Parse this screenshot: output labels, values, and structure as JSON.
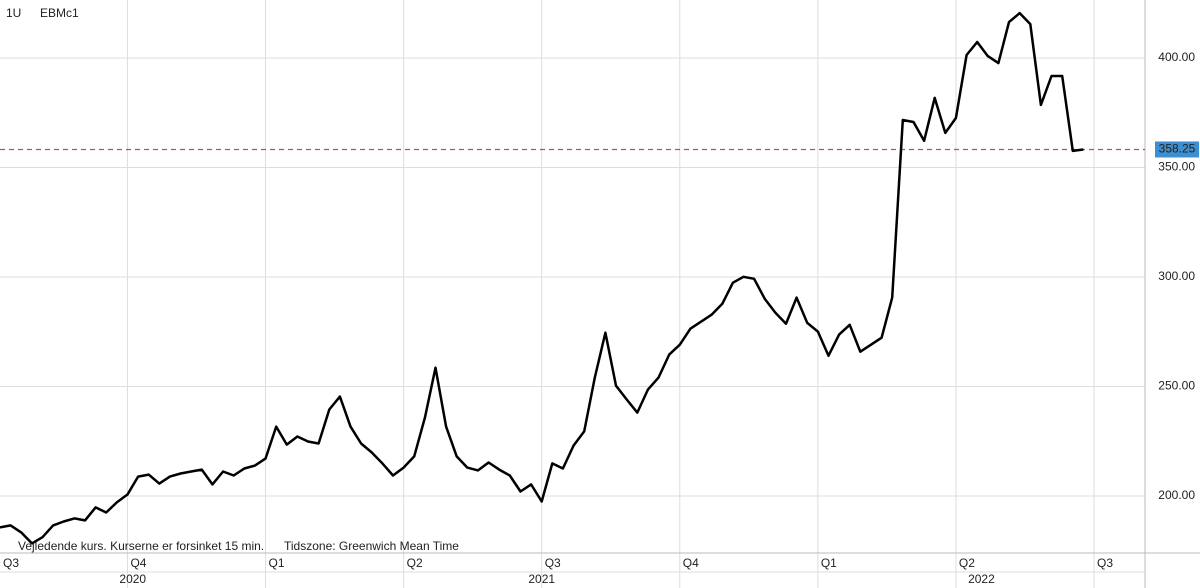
{
  "chart_data": {
    "type": "line",
    "header": [
      "1U",
      "EBMc1"
    ],
    "footnotes": [
      "Vejledende kurs. Kurserne er forsinket 15 min.",
      "Tidszone: Greenwich Mean Time"
    ],
    "x": [
      1,
      2,
      3,
      4,
      5,
      6,
      7,
      8,
      9,
      10,
      11,
      12,
      13,
      14,
      15,
      16,
      17,
      18,
      19,
      20,
      21,
      22,
      23,
      24,
      25,
      26,
      27,
      28,
      29,
      30,
      31,
      32,
      33,
      34,
      35,
      36,
      37,
      38,
      39,
      40,
      41,
      42,
      43,
      44,
      45,
      46,
      47,
      48,
      49,
      50,
      51,
      52,
      53,
      54,
      55,
      56,
      57,
      58,
      59,
      60,
      61,
      62,
      63,
      64,
      65,
      66,
      67,
      68,
      69,
      70,
      71,
      72,
      73,
      74,
      75,
      76,
      77,
      78,
      79,
      80,
      81,
      82,
      83,
      84,
      85,
      86,
      87,
      88,
      89,
      90,
      91,
      92,
      93,
      94,
      95,
      96,
      97,
      98,
      99,
      100,
      101,
      102,
      103
    ],
    "series": [
      {
        "color": "#000000",
        "values": [
          185.7,
          186.6,
          183.4,
          178.4,
          181.2,
          186.6,
          188.4,
          189.8,
          188.9,
          194.8,
          192.5,
          197.1,
          200.7,
          208.9,
          209.8,
          205.7,
          208.9,
          210.3,
          211.2,
          212.1,
          205.3,
          211.2,
          209.4,
          212.6,
          213.9,
          217.1,
          231.7,
          223.5,
          227.2,
          224.9,
          224.0,
          239.5,
          245.4,
          231.7,
          224.0,
          219.9,
          214.9,
          209.4,
          213.0,
          218.1,
          235.8,
          258.6,
          231.7,
          218.1,
          213.0,
          211.7,
          215.3,
          212.1,
          209.4,
          202.1,
          205.3,
          197.5,
          214.9,
          212.6,
          223.1,
          229.5,
          254.1,
          274.6,
          250.4,
          244.1,
          238.1,
          248.6,
          254.1,
          264.6,
          269.1,
          276.4,
          279.6,
          282.8,
          287.8,
          297.4,
          300.1,
          299.2,
          290.1,
          283.7,
          278.7,
          290.6,
          279.1,
          275.1,
          264.1,
          273.7,
          278.2,
          265.9,
          269.1,
          272.3,
          290.6,
          371.7,
          370.8,
          362.2,
          381.8,
          365.8,
          372.6,
          401.4,
          407.3,
          400.9,
          397.7,
          416.4,
          420.5,
          415.5,
          378.6,
          391.8,
          391.8,
          357.6,
          358.25
        ]
      }
    ],
    "last_value": {
      "value": 358.25,
      "label": "358.25",
      "color": "#c0504d"
    },
    "xlim": [
      1,
      108.8
    ],
    "xticks": [
      {
        "value": 0,
        "label": "Q3"
      },
      {
        "value": 13,
        "label": "Q4"
      },
      {
        "value": 26,
        "label": "Q1"
      },
      {
        "value": 39,
        "label": "Q2"
      },
      {
        "value": 52,
        "label": "Q3"
      },
      {
        "value": 65,
        "label": "Q4"
      },
      {
        "value": 78,
        "label": "Q1"
      },
      {
        "value": 91,
        "label": "Q2"
      },
      {
        "value": 104,
        "label": "Q3"
      }
    ],
    "year_ticks": [
      {
        "value": -26,
        "label": "2020"
      },
      {
        "value": 26,
        "label": "2021"
      },
      {
        "value": 78,
        "label": "2022"
      }
    ],
    "ylim": [
      174,
      426.5
    ],
    "yticks": [
      {
        "value": 200,
        "label": "200.00"
      },
      {
        "value": 250,
        "label": "250.00"
      },
      {
        "value": 300,
        "label": "300.00"
      },
      {
        "value": 350,
        "label": "350.00"
      },
      {
        "value": 400,
        "label": "400.00"
      }
    ],
    "grid": true
  }
}
